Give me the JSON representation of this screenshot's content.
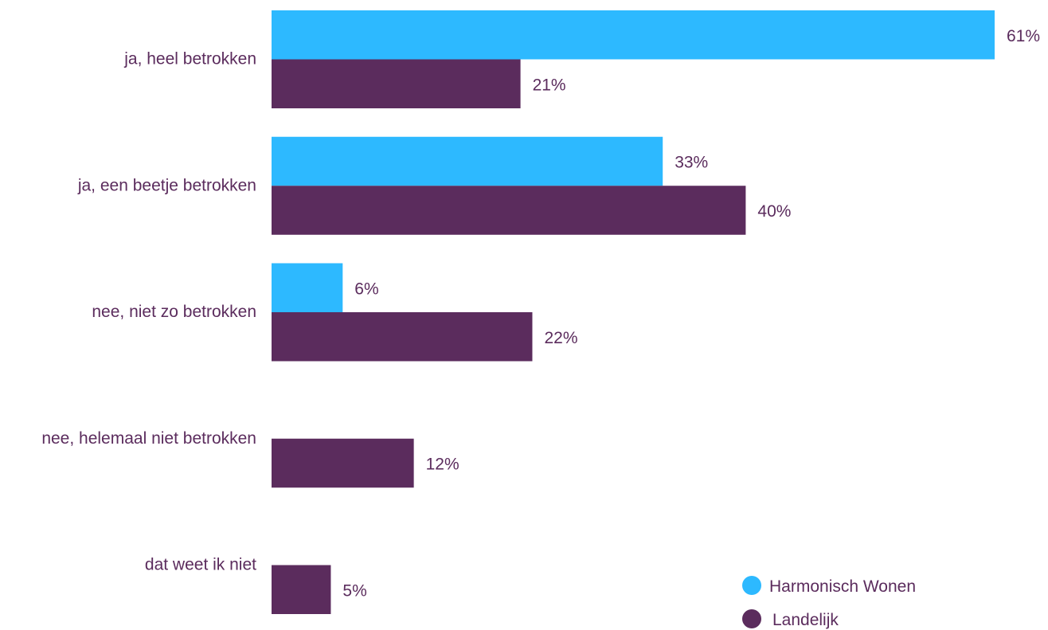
{
  "chart_data": {
    "type": "bar",
    "orientation": "horizontal",
    "categories": [
      "ja, heel betrokken",
      "ja, een beetje betrokken",
      "nee, niet zo betrokken",
      "nee, helemaal niet betrokken",
      "dat weet ik niet"
    ],
    "series": [
      {
        "name": "Harmonisch Wonen",
        "color": "#2db9ff",
        "values": [
          61,
          33,
          6,
          null,
          null
        ],
        "labels": [
          "61%",
          "33%",
          "6%",
          null,
          null
        ]
      },
      {
        "name": "Landelijk",
        "color": "#5b2c5d",
        "values": [
          21,
          40,
          22,
          12,
          5
        ],
        "labels": [
          "21%",
          "40%",
          "22%",
          "12%",
          "5%"
        ]
      }
    ],
    "xlim": [
      0,
      61
    ],
    "grid": false,
    "legend": {
      "position": "bottom-right"
    },
    "text_color": "#5b2c5d"
  }
}
